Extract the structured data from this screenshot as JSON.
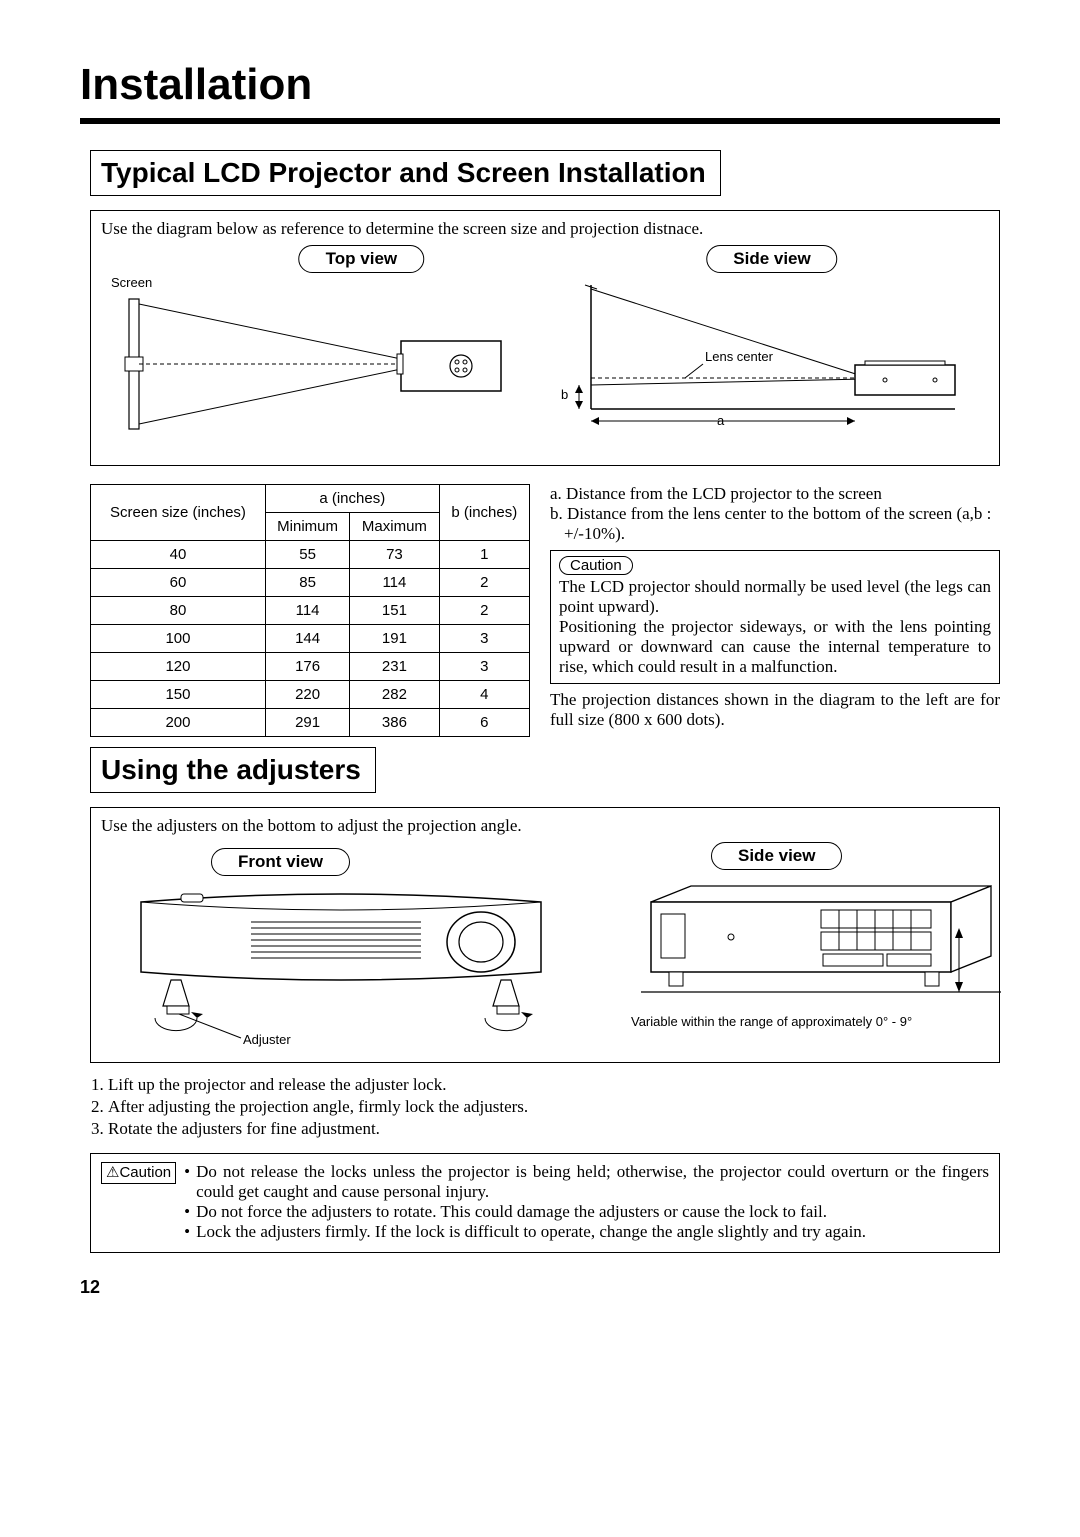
{
  "page_title": "Installation",
  "section1_heading": "Typical LCD Projector and Screen Installation",
  "section1_intro": "Use the diagram below as reference to determine the screen size and projection distnace.",
  "topview_label": "Top view",
  "sideview_label": "Side view",
  "screen_label": "Screen",
  "lenscenter_label": "Lens center",
  "dim_a": "a",
  "dim_b": "b",
  "table": {
    "header_screensize": "Screen size (inches)",
    "header_a": "a (inches)",
    "header_min": "Minimum",
    "header_max": "Maximum",
    "header_b": "b (inches)",
    "rows": [
      {
        "size": "40",
        "min": "55",
        "max": "73",
        "b": "1"
      },
      {
        "size": "60",
        "min": "85",
        "max": "114",
        "b": "2"
      },
      {
        "size": "80",
        "min": "114",
        "max": "151",
        "b": "2"
      },
      {
        "size": "100",
        "min": "144",
        "max": "191",
        "b": "3"
      },
      {
        "size": "120",
        "min": "176",
        "max": "231",
        "b": "3"
      },
      {
        "size": "150",
        "min": "220",
        "max": "282",
        "b": "4"
      },
      {
        "size": "200",
        "min": "291",
        "max": "386",
        "b": "6"
      }
    ]
  },
  "def_a": "a. Distance from the LCD projector to the screen",
  "def_b": "b. Distance from the lens center to the bottom of the screen (a,b : +/-10%).",
  "caution_pill": "Caution",
  "caution1_p1": "The LCD projector should normally be used level (the legs can point upward).",
  "caution1_p2": "Positioning the projector sideways, or with the lens pointing upward or downward can cause the internal temperature to rise, which could result in a malfunction.",
  "note_after_caution": "The projection distances shown in the diagram to the left are for full size (800 x 600 dots).",
  "section2_heading": "Using the adjusters",
  "section2_intro": "Use the adjusters on the bottom to adjust the projection angle.",
  "frontview_label": "Front view",
  "adjuster_label": "Adjuster",
  "range_label": "Variable within the range of approximately 0° - 9°",
  "steps": {
    "s1": "Lift up the projector and release the adjuster lock.",
    "s2": "After adjusting the projection angle, firmly lock the adjusters.",
    "s3": "Rotate the adjusters for fine adjustment."
  },
  "caution_badge": "⚠Caution",
  "caution2_b1": "Do not release the locks unless the projector is being held; otherwise, the projector could overturn or the fingers could get caught and cause personal injury.",
  "caution2_b2": "Do not force the adjusters to rotate. This could damage the adjusters or cause the lock to fail.",
  "caution2_b3": "Lock the adjusters firmly. If the lock is difficult to operate, change the angle slightly and try again.",
  "page_number": "12"
}
